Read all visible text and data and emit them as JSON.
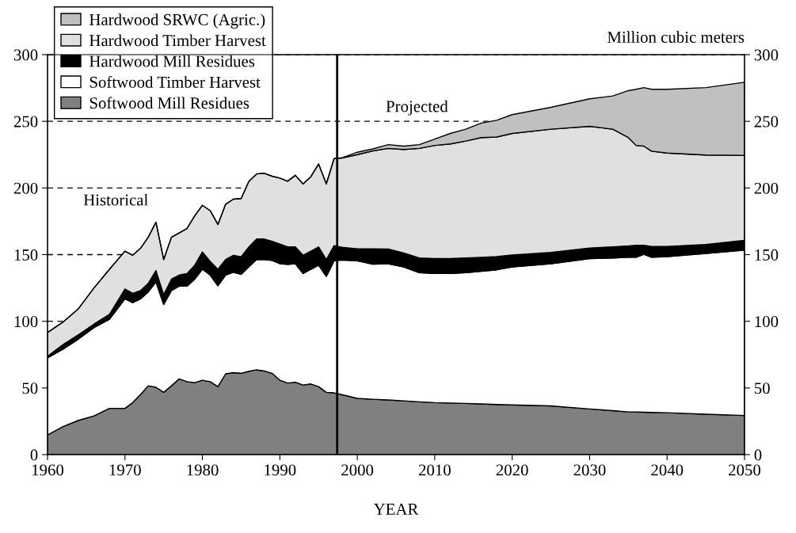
{
  "chart_data": {
    "type": "area",
    "stacked": true,
    "xlabel": "YEAR",
    "x": [
      1960,
      1962,
      1964,
      1966,
      1968,
      1970,
      1971,
      1972,
      1973,
      1974,
      1975,
      1976,
      1977,
      1978,
      1979,
      1980,
      1981,
      1982,
      1983,
      1984,
      1985,
      1986,
      1987,
      1988,
      1989,
      1990,
      1991,
      1992,
      1993,
      1994,
      1995,
      1996,
      1997,
      1998,
      2000,
      2002,
      2004,
      2006,
      2008,
      2010,
      2012,
      2014,
      2016,
      2018,
      2020,
      2025,
      2030,
      2033,
      2035,
      2036,
      2037,
      2038,
      2040,
      2045,
      2050
    ],
    "series": [
      {
        "name": "Softwood Mill Residues",
        "color": "#808080",
        "values": [
          14.7,
          21,
          25.7,
          29,
          34.7,
          34.7,
          39,
          45,
          51.6,
          50.5,
          46.7,
          51.6,
          56.8,
          54.7,
          54,
          55.8,
          54.7,
          51,
          60.6,
          61.5,
          61,
          62.5,
          63.6,
          62.7,
          61,
          55.8,
          53.7,
          54.3,
          52.2,
          53,
          51,
          46.7,
          46.3,
          45,
          42.2,
          41.5,
          41,
          40.3,
          39.6,
          39,
          38.7,
          38.4,
          38,
          37.6,
          37.3,
          36.5,
          34.2,
          33,
          32,
          31.9,
          31.8,
          31.6,
          31.4,
          30.3,
          29.3
        ]
      },
      {
        "name": "Softwood Timber Harvest",
        "color": "#ffffff",
        "values": [
          57.9,
          58,
          61,
          66.2,
          66.8,
          82.1,
          75,
          71.8,
          70.4,
          79,
          65.9,
          71.4,
          69.5,
          71.6,
          77.6,
          83.2,
          80,
          75.7,
          74.1,
          75.3,
          74.2,
          78.5,
          82.7,
          83.6,
          84.7,
          87.4,
          89,
          88.9,
          83.6,
          86,
          91,
          87,
          99,
          101,
          103.2,
          101.3,
          102.2,
          100.4,
          96.9,
          96.8,
          97.1,
          98.1,
          99.5,
          101,
          103.4,
          106.7,
          112.8,
          114.5,
          116,
          116.1,
          118.4,
          116.4,
          117.1,
          120.5,
          124.1
        ]
      },
      {
        "name": "Hardwood Mill Residues",
        "color": "#000000",
        "values": [
          1.1,
          3.5,
          3.3,
          2.7,
          3.8,
          7.4,
          7,
          6.2,
          6.4,
          8.5,
          7.4,
          8.6,
          8.4,
          9.5,
          10.4,
          13,
          10.3,
          12.3,
          11.6,
          12.7,
          13.2,
          14.8,
          15.4,
          15.4,
          14.3,
          14.8,
          13.1,
          12.6,
          13.7,
          13.6,
          13.8,
          12.6,
          11.5,
          9.5,
          9,
          11.6,
          11,
          10.6,
          11,
          11.2,
          11.2,
          11,
          10.5,
          9.9,
          9.1,
          8.5,
          8,
          8.3,
          8.5,
          9,
          6.8,
          8.1,
          7.6,
          6.8,
          7.4
        ]
      },
      {
        "name": "Hardwood Timber Harvest",
        "color": "#e0e0e0",
        "values": [
          17.9,
          16.9,
          19.5,
          27.1,
          33.7,
          28.4,
          28.5,
          31.7,
          34.6,
          36.3,
          26.3,
          31.4,
          31.6,
          33.7,
          37,
          35,
          38,
          33.6,
          41.5,
          42.1,
          43.6,
          49.2,
          48.8,
          49.3,
          48.8,
          49.4,
          49.2,
          53.7,
          53.5,
          55.8,
          62.2,
          56.7,
          65.2,
          66.9,
          70.6,
          73.4,
          75.5,
          77.6,
          82.2,
          84.9,
          86,
          87.7,
          89.8,
          89.7,
          91.1,
          92.4,
          91.2,
          88.3,
          81.3,
          74.9,
          74.4,
          71.5,
          70.1,
          67.1,
          63.7
        ]
      },
      {
        "name": "Hardwood SRWC (Agric.)",
        "color": "#c0c0c0",
        "values": [
          0,
          0,
          0,
          0,
          0,
          0,
          0,
          0,
          0,
          0,
          0,
          0,
          0,
          0,
          0,
          0,
          0,
          0,
          0,
          0,
          0,
          0,
          0,
          0,
          0,
          0,
          0,
          0,
          0,
          0,
          0,
          0,
          0,
          0.2,
          1.8,
          1.5,
          2.8,
          2.5,
          2.8,
          4.8,
          7.9,
          8.9,
          10.9,
          12.6,
          14.1,
          16.4,
          20.7,
          24.9,
          35.2,
          42.1,
          43.9,
          46.4,
          47.8,
          50.6,
          54.8
        ]
      }
    ],
    "xlim": [
      1960,
      2050
    ],
    "xticks": [
      1960,
      1970,
      1980,
      1990,
      2000,
      2010,
      2020,
      2030,
      2040,
      2050
    ],
    "ylim": [
      0,
      300
    ],
    "yticks": [
      0,
      50,
      100,
      150,
      200,
      250,
      300
    ],
    "y2lim": [
      0,
      300
    ],
    "y2ticks": [
      0,
      50,
      100,
      150,
      200,
      250,
      300
    ],
    "grid": "y",
    "legend": "top left",
    "ref_lines": [
      {
        "axis": "x",
        "value": 1997.4,
        "color": "#000000"
      }
    ],
    "annotations": [
      "Historical",
      "Projected",
      "Million cubic meters"
    ]
  }
}
